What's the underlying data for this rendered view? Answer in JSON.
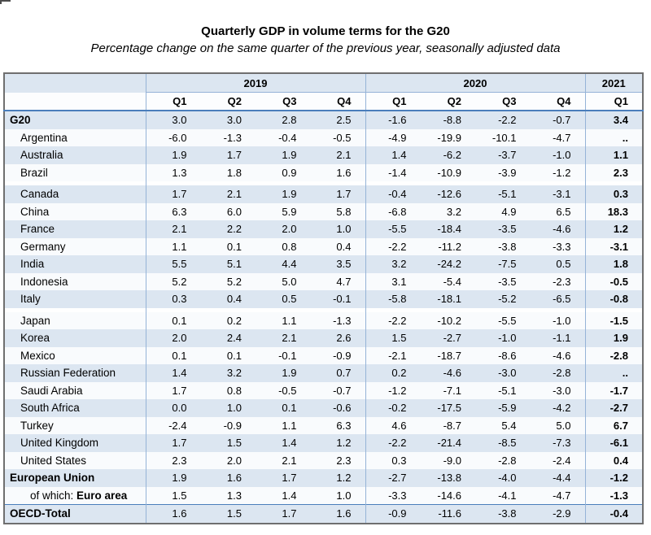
{
  "header": {
    "title": "Quarterly GDP in volume terms for the G20",
    "subtitle": "Percentage change on the same quarter of the previous year, seasonally adjusted data"
  },
  "colors": {
    "row_shade": "#dce6f1",
    "grid_blue": "#95b3d7",
    "strong_rule_blue": "#4a7ebb",
    "outer_border_gray": "#6f6f6f"
  },
  "table": {
    "year_groups": [
      {
        "label": "2019",
        "quarters": [
          "Q1",
          "Q2",
          "Q3",
          "Q4"
        ]
      },
      {
        "label": "2020",
        "quarters": [
          "Q1",
          "Q2",
          "Q3",
          "Q4"
        ]
      },
      {
        "label": "2021",
        "quarters": [
          "Q1"
        ]
      }
    ],
    "missing_value_symbol": "..",
    "rows": [
      {
        "label": "G20",
        "bold": true,
        "indent": 0,
        "values": [
          "3.0",
          "3.0",
          "2.8",
          "2.5",
          "-1.6",
          "-8.8",
          "-2.2",
          "-0.7",
          "3.4"
        ]
      },
      {
        "label": "Argentina",
        "bold": false,
        "indent": 1,
        "values": [
          "-6.0",
          "-1.3",
          "-0.4",
          "-0.5",
          "-4.9",
          "-19.9",
          "-10.1",
          "-4.7",
          ".."
        ]
      },
      {
        "label": "Australia",
        "bold": false,
        "indent": 1,
        "values": [
          "1.9",
          "1.7",
          "1.9",
          "2.1",
          "1.4",
          "-6.2",
          "-3.7",
          "-1.0",
          "1.1"
        ]
      },
      {
        "label": "Brazil",
        "bold": false,
        "indent": 1,
        "values": [
          "1.3",
          "1.8",
          "0.9",
          "1.6",
          "-1.4",
          "-10.9",
          "-3.9",
          "-1.2",
          "2.3"
        ]
      },
      {
        "label": "Canada",
        "bold": false,
        "indent": 1,
        "gap_before": true,
        "values": [
          "1.7",
          "2.1",
          "1.9",
          "1.7",
          "-0.4",
          "-12.6",
          "-5.1",
          "-3.1",
          "0.3"
        ]
      },
      {
        "label": "China",
        "bold": false,
        "indent": 1,
        "values": [
          "6.3",
          "6.0",
          "5.9",
          "5.8",
          "-6.8",
          "3.2",
          "4.9",
          "6.5",
          "18.3"
        ]
      },
      {
        "label": "France",
        "bold": false,
        "indent": 1,
        "values": [
          "2.1",
          "2.2",
          "2.0",
          "1.0",
          "-5.5",
          "-18.4",
          "-3.5",
          "-4.6",
          "1.2"
        ]
      },
      {
        "label": "Germany",
        "bold": false,
        "indent": 1,
        "values": [
          "1.1",
          "0.1",
          "0.8",
          "0.4",
          "-2.2",
          "-11.2",
          "-3.8",
          "-3.3",
          "-3.1"
        ]
      },
      {
        "label": "India",
        "bold": false,
        "indent": 1,
        "values": [
          "5.5",
          "5.1",
          "4.4",
          "3.5",
          "3.2",
          "-24.2",
          "-7.5",
          "0.5",
          "1.8"
        ]
      },
      {
        "label": "Indonesia",
        "bold": false,
        "indent": 1,
        "values": [
          "5.2",
          "5.2",
          "5.0",
          "4.7",
          "3.1",
          "-5.4",
          "-3.5",
          "-2.3",
          "-0.5"
        ]
      },
      {
        "label": "Italy",
        "bold": false,
        "indent": 1,
        "values": [
          "0.3",
          "0.4",
          "0.5",
          "-0.1",
          "-5.8",
          "-18.1",
          "-5.2",
          "-6.5",
          "-0.8"
        ]
      },
      {
        "label": "Japan",
        "bold": false,
        "indent": 1,
        "gap_before": true,
        "values": [
          "0.1",
          "0.2",
          "1.1",
          "-1.3",
          "-2.2",
          "-10.2",
          "-5.5",
          "-1.0",
          "-1.5"
        ]
      },
      {
        "label": "Korea",
        "bold": false,
        "indent": 1,
        "values": [
          "2.0",
          "2.4",
          "2.1",
          "2.6",
          "1.5",
          "-2.7",
          "-1.0",
          "-1.1",
          "1.9"
        ]
      },
      {
        "label": "Mexico",
        "bold": false,
        "indent": 1,
        "values": [
          "0.1",
          "0.1",
          "-0.1",
          "-0.9",
          "-2.1",
          "-18.7",
          "-8.6",
          "-4.6",
          "-2.8"
        ]
      },
      {
        "label": "Russian Federation",
        "bold": false,
        "indent": 1,
        "values": [
          "1.4",
          "3.2",
          "1.9",
          "0.7",
          "0.2",
          "-4.6",
          "-3.0",
          "-2.8",
          ".."
        ]
      },
      {
        "label": "Saudi Arabia",
        "bold": false,
        "indent": 1,
        "values": [
          "1.7",
          "0.8",
          "-0.5",
          "-0.7",
          "-1.2",
          "-7.1",
          "-5.1",
          "-3.0",
          "-1.7"
        ]
      },
      {
        "label": "South Africa",
        "bold": false,
        "indent": 1,
        "values": [
          "0.0",
          "1.0",
          "0.1",
          "-0.6",
          "-0.2",
          "-17.5",
          "-5.9",
          "-4.2",
          "-2.7"
        ]
      },
      {
        "label": "Turkey",
        "bold": false,
        "indent": 1,
        "values": [
          "-2.4",
          "-0.9",
          "1.1",
          "6.3",
          "4.6",
          "-8.7",
          "5.4",
          "5.0",
          "6.7"
        ]
      },
      {
        "label": "United Kingdom",
        "bold": false,
        "indent": 1,
        "values": [
          "1.7",
          "1.5",
          "1.4",
          "1.2",
          "-2.2",
          "-21.4",
          "-8.5",
          "-7.3",
          "-6.1"
        ]
      },
      {
        "label": "United States",
        "bold": false,
        "indent": 1,
        "values": [
          "2.3",
          "2.0",
          "2.1",
          "2.3",
          "0.3",
          "-9.0",
          "-2.8",
          "-2.4",
          "0.4"
        ]
      },
      {
        "label": "European Union",
        "bold": true,
        "indent": 0,
        "values": [
          "1.9",
          "1.6",
          "1.7",
          "1.2",
          "-2.7",
          "-13.8",
          "-4.0",
          "-4.4",
          "-1.2"
        ]
      },
      {
        "label": "Euro area",
        "label_prefix": "of which: ",
        "bold": true,
        "indent": 2,
        "values": [
          "1.5",
          "1.3",
          "1.4",
          "1.0",
          "-3.3",
          "-14.6",
          "-4.1",
          "-4.7",
          "-1.3"
        ]
      },
      {
        "label": "OECD-Total",
        "bold": true,
        "indent": 0,
        "border_top": true,
        "values": [
          "1.6",
          "1.5",
          "1.7",
          "1.6",
          "-0.9",
          "-11.6",
          "-3.8",
          "-2.9",
          "-0.4"
        ]
      }
    ]
  }
}
